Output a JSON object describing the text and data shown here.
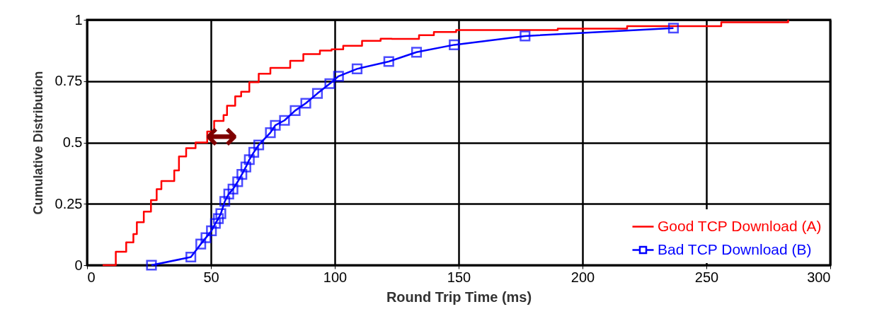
{
  "chart_data": {
    "type": "line",
    "xlabel": "Round Trip Time (ms)",
    "ylabel": "Cumulative Distribution",
    "xlim": [
      0,
      300
    ],
    "xticks": [
      0,
      50,
      100,
      150,
      200,
      250,
      300
    ],
    "ylim": [
      0,
      1
    ],
    "yticks": [
      0,
      0.25,
      0.5,
      0.75,
      1
    ],
    "grid": true,
    "legend": "bottom right",
    "annotations": [
      "↔"
    ],
    "series": [
      {
        "name": "Good TCP Download (A)",
        "color": "#ff0000",
        "type": "step",
        "marker": "none",
        "x": [
          6.3,
          11.6,
          15.8,
          18.7,
          20.1,
          22.9,
          25.8,
          28.1,
          30,
          35.2,
          37.1,
          40,
          43.8,
          48.5,
          51.3,
          55.1,
          56.5,
          59.8,
          62.2,
          65.5,
          69.3,
          74,
          82,
          87.3,
          94,
          98.7,
          103.4,
          111,
          118.5,
          123,
          134,
          140,
          149,
          190,
          218,
          256,
          283
        ],
        "values": [
          0,
          0.055,
          0.093,
          0.127,
          0.175,
          0.218,
          0.265,
          0.31,
          0.343,
          0.386,
          0.443,
          0.477,
          0.5,
          0.545,
          0.588,
          0.612,
          0.65,
          0.688,
          0.707,
          0.746,
          0.78,
          0.804,
          0.833,
          0.86,
          0.875,
          0.88,
          0.894,
          0.914,
          0.923,
          0.922,
          0.937,
          0.95,
          0.958,
          0.964,
          0.974,
          0.99,
          1
        ]
      },
      {
        "name": "Bad TCP Download (B)",
        "color": "#0000ff",
        "type": "line",
        "marker": "square",
        "x": [
          26,
          41.9,
          45.9,
          48,
          50.2,
          51.8,
          53,
          54,
          55.6,
          57.2,
          58.9,
          60.8,
          62.5,
          64.1,
          65.5,
          67.3,
          69.3,
          74,
          76,
          79.7,
          84,
          88.3,
          93,
          98,
          101.5,
          109,
          121.8,
          133,
          148.2,
          176.8,
          236.7
        ],
        "values": [
          0,
          0.033,
          0.086,
          0.112,
          0.14,
          0.17,
          0.19,
          0.21,
          0.26,
          0.29,
          0.31,
          0.34,
          0.37,
          0.4,
          0.43,
          0.46,
          0.49,
          0.54,
          0.57,
          0.59,
          0.63,
          0.66,
          0.7,
          0.74,
          0.77,
          0.8,
          0.83,
          0.868,
          0.898,
          0.934,
          0.966
        ]
      }
    ]
  }
}
